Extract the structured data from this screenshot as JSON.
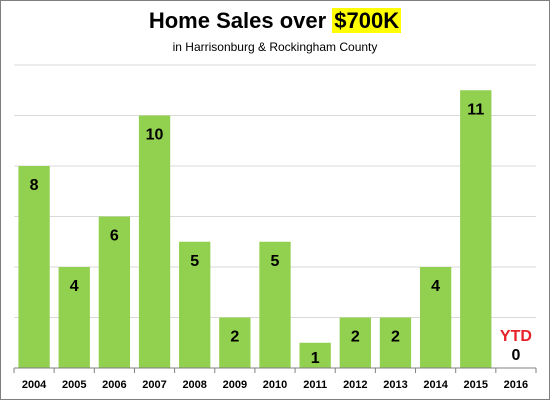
{
  "chart_data": {
    "type": "bar",
    "title_main": "Home Sales over ",
    "title_highlight": "$700K",
    "subtitle": "in Harrisonburg & Rockingham County",
    "categories": [
      "2004",
      "2005",
      "2006",
      "2007",
      "2008",
      "2009",
      "2010",
      "2011",
      "2012",
      "2013",
      "2014",
      "2015",
      "2016"
    ],
    "values": [
      8,
      4,
      6,
      10,
      5,
      2,
      5,
      1,
      2,
      2,
      4,
      11,
      0
    ],
    "ylim": [
      0,
      12
    ],
    "grid": true,
    "bar_color": "#92d050",
    "annotation": "YTD",
    "annotation_color": "#e8202a"
  }
}
